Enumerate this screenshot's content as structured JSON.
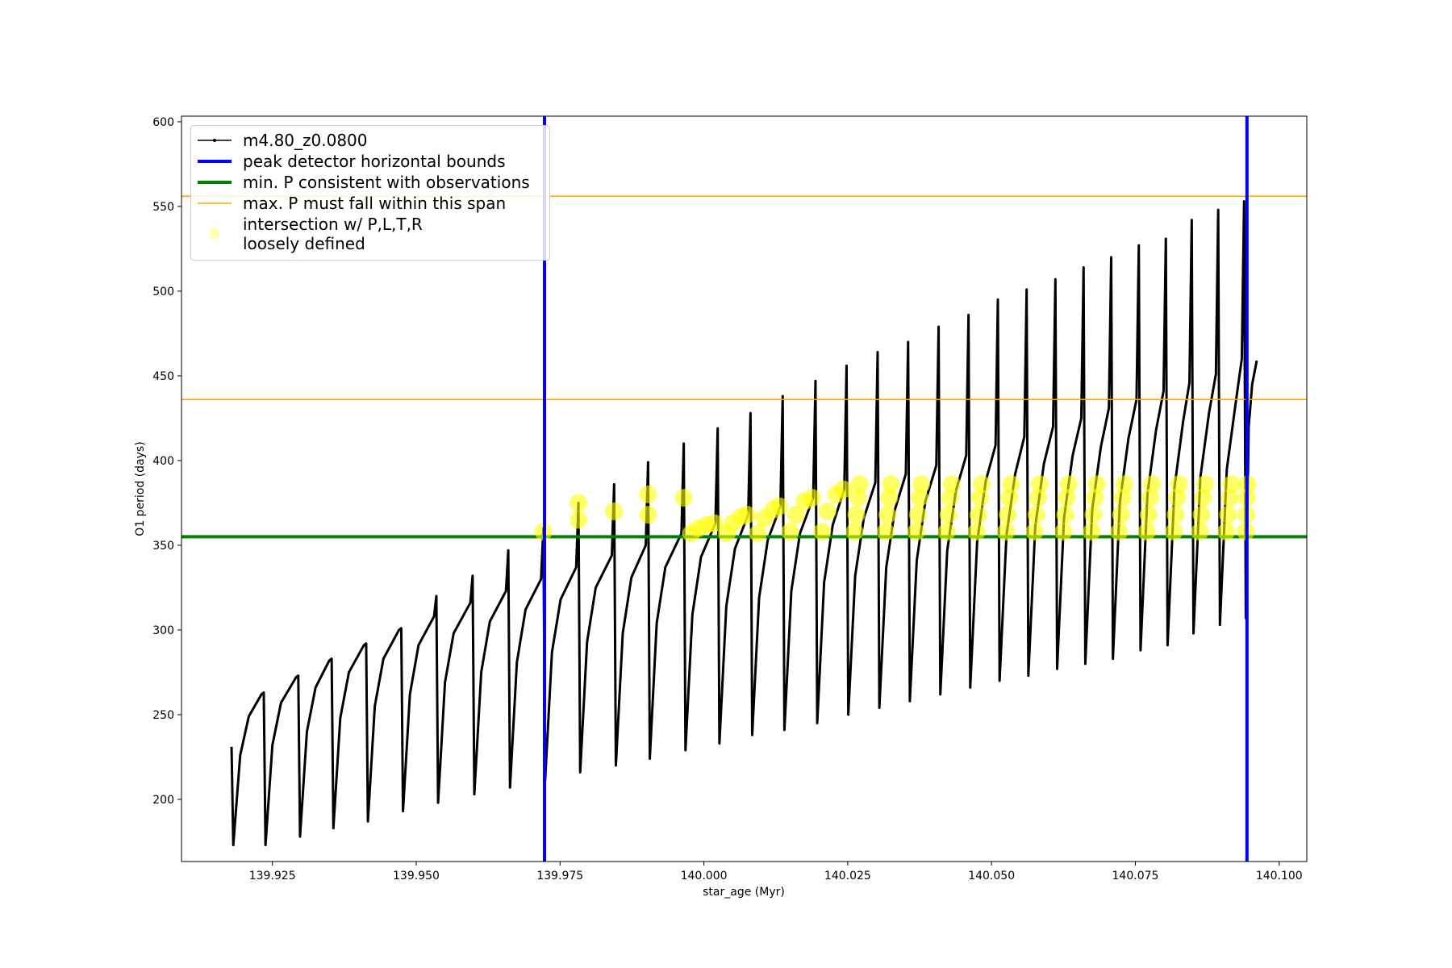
{
  "chart_data": {
    "type": "line",
    "xlabel": "star_age (Myr)",
    "ylabel": "O1 period (days)",
    "xlim": [
      139.9092,
      140.1048
    ],
    "ylim": [
      163.3,
      603.3
    ],
    "xticks": [
      139.925,
      {
        "value": 139.95,
        "label": "139.950"
      },
      139.975,
      {
        "value": 140,
        "label": "140.000"
      },
      140.025,
      {
        "value": 140.05,
        "label": "140.050"
      },
      140.075,
      {
        "value": 140.1,
        "label": "140.100"
      }
    ],
    "yticks": [
      200,
      250,
      300,
      350,
      400,
      450,
      500,
      550,
      600
    ],
    "legend": "upper left",
    "series": [
      {
        "name": "m4.80_z0.0800",
        "type": "line",
        "color": "#000000",
        "x": [
          139.9179,
          139.9182,
          139.9194,
          139.9209,
          139.9231,
          139.9235,
          139.9238,
          139.925,
          139.9265,
          139.9291,
          139.9295,
          139.9298,
          139.931,
          139.9325,
          139.9349,
          139.9353,
          139.9356,
          139.9368,
          139.9383,
          139.9409,
          139.9413,
          139.9416,
          139.9428,
          139.9443,
          139.947,
          139.9474,
          139.9477,
          139.9489,
          139.9504,
          139.9531,
          139.9535,
          139.9538,
          139.955,
          139.9565,
          139.9594,
          139.9598,
          139.9601,
          139.9613,
          139.9628,
          139.9656,
          139.966,
          139.9663,
          139.9675,
          139.969,
          139.9717,
          139.9721,
          139.9724,
          139.9736,
          139.9751,
          139.9778,
          139.9782,
          139.9785,
          139.9797,
          139.9812,
          139.984,
          139.9844,
          139.9847,
          139.9859,
          139.9874,
          139.9899,
          139.9903,
          139.9906,
          139.9918,
          139.9933,
          139.9961,
          139.9965,
          139.9968,
          139.998,
          139.9995,
          140.002,
          140.0024,
          140.0027,
          140.0039,
          140.0054,
          140.0077,
          140.0081,
          140.0084,
          140.0096,
          140.0111,
          140.0133,
          140.0137,
          140.014,
          140.0152,
          140.0167,
          140.019,
          140.0194,
          140.0197,
          140.0209,
          140.0224,
          140.0244,
          140.0248,
          140.0251,
          140.0263,
          140.0278,
          140.0298,
          140.0302,
          140.0305,
          140.0317,
          140.0332,
          140.0351,
          140.0355,
          140.0358,
          140.037,
          140.0385,
          140.0404,
          140.0408,
          140.0411,
          140.0423,
          140.0438,
          140.0456,
          140.046,
          140.0463,
          140.0475,
          140.049,
          140.0507,
          140.0511,
          140.0514,
          140.0526,
          140.0541,
          140.0557,
          140.0561,
          140.0564,
          140.0576,
          140.0591,
          140.0607,
          140.0611,
          140.0614,
          140.0626,
          140.0641,
          140.0656,
          140.066,
          140.0663,
          140.0675,
          140.069,
          140.0704,
          140.0708,
          140.0711,
          140.0723,
          140.0738,
          140.0752,
          140.0756,
          140.0759,
          140.0771,
          140.0786,
          140.0799,
          140.0803,
          140.0806,
          140.0818,
          140.0833,
          140.0844,
          140.0848,
          140.0851,
          140.0863,
          140.0878,
          140.089,
          140.0894,
          140.0897,
          140.0909,
          140.0924,
          140.0935,
          140.0939,
          140.0942,
          140.0947,
          140.0953,
          140.0961
        ],
        "y": [
          231,
          173,
          226,
          249,
          262,
          263,
          173,
          232,
          257,
          272,
          273,
          178,
          240,
          266,
          282,
          283,
          183,
          248,
          275,
          291,
          292,
          187,
          255,
          283,
          300,
          301,
          193,
          262,
          291,
          308,
          320,
          198,
          269,
          298,
          316,
          332,
          203,
          275,
          305,
          323,
          347,
          207,
          281,
          312,
          330,
          360,
          211,
          287,
          318,
          337,
          375,
          216,
          293,
          325,
          344,
          386,
          220,
          298,
          331,
          350,
          399,
          224,
          304,
          337,
          357,
          410,
          229,
          309,
          343,
          363,
          419,
          233,
          314,
          348,
          368,
          428,
          238,
          319,
          353,
          373,
          438,
          241,
          323,
          357,
          378,
          447,
          245,
          328,
          362,
          383,
          456,
          250,
          332,
          366,
          387,
          464,
          254,
          337,
          371,
          392,
          470,
          258,
          341,
          376,
          397,
          479,
          262,
          347,
          382,
          403,
          486,
          266,
          352,
          388,
          409,
          495,
          270,
          356,
          392,
          414,
          501,
          273,
          361,
          398,
          420,
          507,
          277,
          366,
          403,
          425,
          514,
          280,
          371,
          408,
          431,
          520,
          283,
          375,
          413,
          436,
          527,
          288,
          380,
          418,
          441,
          531,
          291,
          384,
          423,
          446,
          542,
          298,
          390,
          428,
          451,
          548,
          303,
          395,
          433,
          460,
          553,
          307,
          420,
          445,
          459
        ]
      },
      {
        "name": "intersection w/ P,L,T,R\nloosely defined",
        "type": "scatter",
        "color": "#ffff00",
        "x": [
          139.9721,
          139.9782,
          139.9782,
          139.9844,
          139.9903,
          139.9903,
          139.9965,
          139.9978,
          139.999,
          140.0005,
          140.0018,
          140.004,
          140.005,
          140.0065,
          140.0075,
          140.0094,
          140.0105,
          140.012,
          140.0131,
          140.015,
          140.016,
          140.0175,
          140.0188,
          140.0206,
          140.0215,
          140.023,
          140.0242,
          140.0262,
          140.0265,
          140.0268,
          140.0271,
          140.0316,
          140.0319,
          140.0322,
          140.0325,
          140.0369,
          140.0372,
          140.0375,
          140.0378,
          140.0422,
          140.0425,
          140.0428,
          140.0431,
          140.0474,
          140.0477,
          140.048,
          140.0483,
          140.0525,
          140.0528,
          140.0531,
          140.0534,
          140.0575,
          140.0578,
          140.0581,
          140.0584,
          140.0625,
          140.0628,
          140.0631,
          140.0634,
          140.0674,
          140.0677,
          140.068,
          140.0683,
          140.0722,
          140.0725,
          140.0728,
          140.0731,
          140.077,
          140.0773,
          140.0776,
          140.0779,
          140.0817,
          140.082,
          140.0823,
          140.0826,
          140.0862,
          140.0865,
          140.0868,
          140.0871,
          140.0908,
          140.0911,
          140.0914,
          140.0917,
          140.0942,
          140.0943,
          140.0944,
          140.0945
        ],
        "y": [
          358,
          375,
          365,
          370,
          380,
          368,
          378,
          357,
          360,
          362,
          363,
          357,
          363,
          367,
          368,
          357,
          366,
          371,
          373,
          358,
          368,
          376,
          378,
          358,
          370,
          380,
          383,
          358,
          368,
          378,
          386,
          358,
          368,
          378,
          386,
          358,
          368,
          378,
          386,
          358,
          368,
          378,
          386,
          358,
          368,
          378,
          386,
          358,
          368,
          378,
          386,
          358,
          368,
          378,
          386,
          358,
          368,
          378,
          386,
          358,
          368,
          378,
          386,
          358,
          368,
          378,
          386,
          358,
          368,
          378,
          386,
          358,
          368,
          378,
          386,
          358,
          368,
          378,
          386,
          358,
          368,
          378,
          386,
          358,
          368,
          378,
          386
        ]
      }
    ],
    "vlines": {
      "name": "peak detector horizontal bounds",
      "color": "#0000ff",
      "values": [
        139.9723,
        140.0944
      ]
    },
    "hlines": [
      {
        "name": "min. P consistent with observations",
        "color": "#008000",
        "values": [
          355
        ]
      },
      {
        "name": "max. P must fall within this span",
        "color": "#ffa500",
        "values": [
          436,
          556
        ]
      }
    ]
  }
}
